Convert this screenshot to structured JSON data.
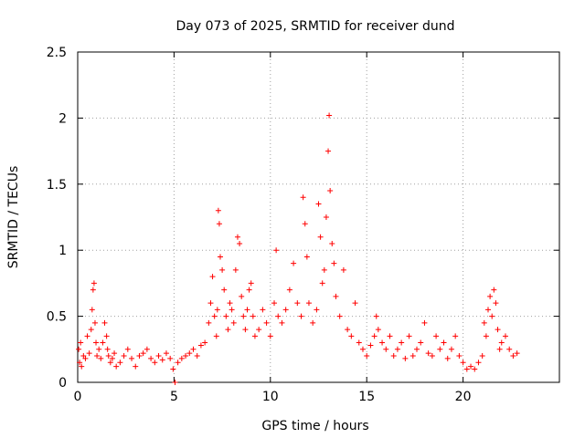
{
  "chart_data": {
    "type": "scatter",
    "title": "Day 073 of 2025, SRMTID for receiver dund",
    "xlabel": "GPS time / hours",
    "ylabel": "SRMTID / TECUs",
    "xlim": [
      0,
      25
    ],
    "ylim": [
      0,
      2.5
    ],
    "xticks": [
      0,
      5,
      10,
      15,
      20
    ],
    "xtick_labels": [
      "0",
      "5",
      "10",
      "15",
      "20"
    ],
    "yticks": [
      0,
      0.5,
      1,
      1.5,
      2,
      2.5
    ],
    "ytick_labels": [
      "0",
      "0.5",
      "1",
      "1.5",
      "2",
      "2.5"
    ],
    "grid": true,
    "marker": "plus",
    "color": "#ff0000",
    "series": [
      {
        "name": "SRMTID",
        "x": [
          0.05,
          0.1,
          0.15,
          0.2,
          0.3,
          0.4,
          0.5,
          0.6,
          0.7,
          0.75,
          0.8,
          0.85,
          0.9,
          0.95,
          1.0,
          1.1,
          1.2,
          1.3,
          1.4,
          1.5,
          1.55,
          1.6,
          1.7,
          1.8,
          1.9,
          2.0,
          2.2,
          2.4,
          2.6,
          2.8,
          3.0,
          3.2,
          3.4,
          3.6,
          3.8,
          4.0,
          4.2,
          4.4,
          4.6,
          4.8,
          4.95,
          5.05,
          5.2,
          5.4,
          5.6,
          5.8,
          6.0,
          6.2,
          6.4,
          6.6,
          6.8,
          6.9,
          7.0,
          7.1,
          7.2,
          7.25,
          7.3,
          7.35,
          7.4,
          7.5,
          7.6,
          7.7,
          7.8,
          7.9,
          8.0,
          8.1,
          8.2,
          8.3,
          8.4,
          8.5,
          8.6,
          8.7,
          8.8,
          8.9,
          9.0,
          9.1,
          9.2,
          9.4,
          9.6,
          9.8,
          10.0,
          10.2,
          10.3,
          10.4,
          10.6,
          10.8,
          11.0,
          11.2,
          11.4,
          11.6,
          11.7,
          11.8,
          11.9,
          12.0,
          12.2,
          12.4,
          12.5,
          12.6,
          12.7,
          12.8,
          12.9,
          13.0,
          13.05,
          13.1,
          13.2,
          13.3,
          13.4,
          13.6,
          13.8,
          14.0,
          14.2,
          14.4,
          14.6,
          14.8,
          15.0,
          15.2,
          15.4,
          15.5,
          15.6,
          15.8,
          16.0,
          16.2,
          16.4,
          16.6,
          16.8,
          17.0,
          17.2,
          17.4,
          17.6,
          17.8,
          18.0,
          18.2,
          18.4,
          18.6,
          18.8,
          19.0,
          19.2,
          19.4,
          19.6,
          19.8,
          20.0,
          20.2,
          20.4,
          20.6,
          20.8,
          21.0,
          21.1,
          21.2,
          21.3,
          21.4,
          21.5,
          21.6,
          21.7,
          21.8,
          21.9,
          22.0,
          22.2,
          22.4,
          22.6,
          22.8
        ],
        "y": [
          0.25,
          0.15,
          0.3,
          0.12,
          0.2,
          0.18,
          0.35,
          0.22,
          0.4,
          0.55,
          0.7,
          0.75,
          0.45,
          0.3,
          0.2,
          0.25,
          0.18,
          0.3,
          0.45,
          0.35,
          0.25,
          0.2,
          0.15,
          0.18,
          0.22,
          0.12,
          0.15,
          0.2,
          0.25,
          0.18,
          0.12,
          0.2,
          0.22,
          0.25,
          0.18,
          0.15,
          0.2,
          0.17,
          0.22,
          0.18,
          0.1,
          0.0,
          0.15,
          0.18,
          0.2,
          0.22,
          0.25,
          0.2,
          0.28,
          0.3,
          0.45,
          0.6,
          0.8,
          0.5,
          0.35,
          0.55,
          1.3,
          1.2,
          0.95,
          0.85,
          0.7,
          0.5,
          0.4,
          0.6,
          0.55,
          0.45,
          0.85,
          1.1,
          1.05,
          0.65,
          0.5,
          0.4,
          0.55,
          0.7,
          0.75,
          0.5,
          0.35,
          0.4,
          0.55,
          0.45,
          0.35,
          0.6,
          1.0,
          0.5,
          0.45,
          0.55,
          0.7,
          0.9,
          0.6,
          0.5,
          1.4,
          1.2,
          0.95,
          0.6,
          0.45,
          0.55,
          1.35,
          1.1,
          0.75,
          0.85,
          1.25,
          1.75,
          2.02,
          1.45,
          1.05,
          0.9,
          0.65,
          0.5,
          0.85,
          0.4,
          0.35,
          0.6,
          0.3,
          0.25,
          0.2,
          0.28,
          0.35,
          0.5,
          0.4,
          0.3,
          0.25,
          0.35,
          0.2,
          0.25,
          0.3,
          0.18,
          0.35,
          0.2,
          0.25,
          0.3,
          0.45,
          0.22,
          0.2,
          0.35,
          0.25,
          0.3,
          0.18,
          0.25,
          0.35,
          0.2,
          0.15,
          0.1,
          0.12,
          0.1,
          0.15,
          0.2,
          0.45,
          0.35,
          0.55,
          0.65,
          0.5,
          0.7,
          0.6,
          0.4,
          0.25,
          0.3,
          0.35,
          0.25,
          0.2,
          0.22
        ]
      }
    ]
  }
}
